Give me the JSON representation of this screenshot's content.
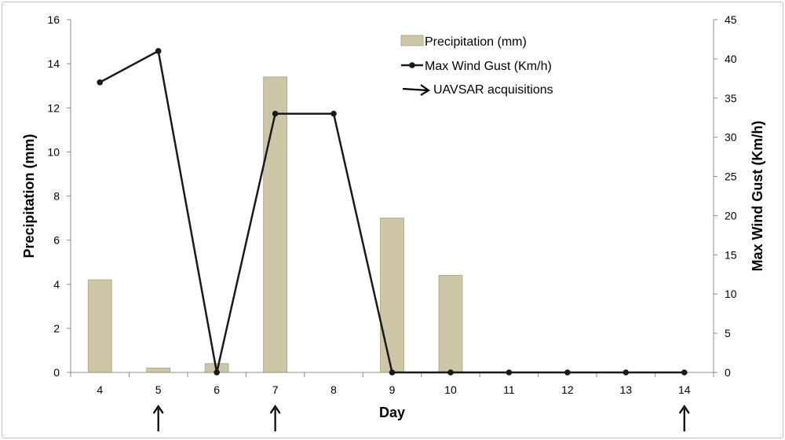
{
  "chart_data": {
    "type": "bar+line",
    "categories": [
      "4",
      "5",
      "6",
      "7",
      "8",
      "9",
      "10",
      "11",
      "12",
      "13",
      "14"
    ],
    "series": [
      {
        "name": "Precipitation (mm)",
        "kind": "bar",
        "axis": "left",
        "color": "#cdc7a8",
        "values": [
          4.2,
          0.2,
          0.4,
          13.4,
          0,
          7.0,
          4.4,
          0,
          0,
          0,
          0
        ]
      },
      {
        "name": "Max Wind Gust (Km/h)",
        "kind": "line",
        "axis": "right",
        "color": "#1a1a1a",
        "values": [
          37,
          41,
          0,
          33,
          33,
          0,
          0,
          0,
          0,
          0,
          0
        ]
      }
    ],
    "acquisitions": {
      "name": "UAVSAR acquisitions",
      "days": [
        "5",
        "7",
        "14"
      ]
    },
    "xlabel": "Day",
    "ylabel_left": "Precipitation (mm)",
    "ylabel_right": "Max Wind Gust (Km/h)",
    "ylim_left": [
      0,
      16
    ],
    "yticks_left": [
      0,
      2,
      4,
      6,
      8,
      10,
      12,
      14,
      16
    ],
    "ylim_right": [
      0,
      45
    ],
    "yticks_right": [
      0,
      5,
      10,
      15,
      20,
      25,
      30,
      35,
      40,
      45
    ],
    "grid": false,
    "legend_position": "top-right"
  }
}
